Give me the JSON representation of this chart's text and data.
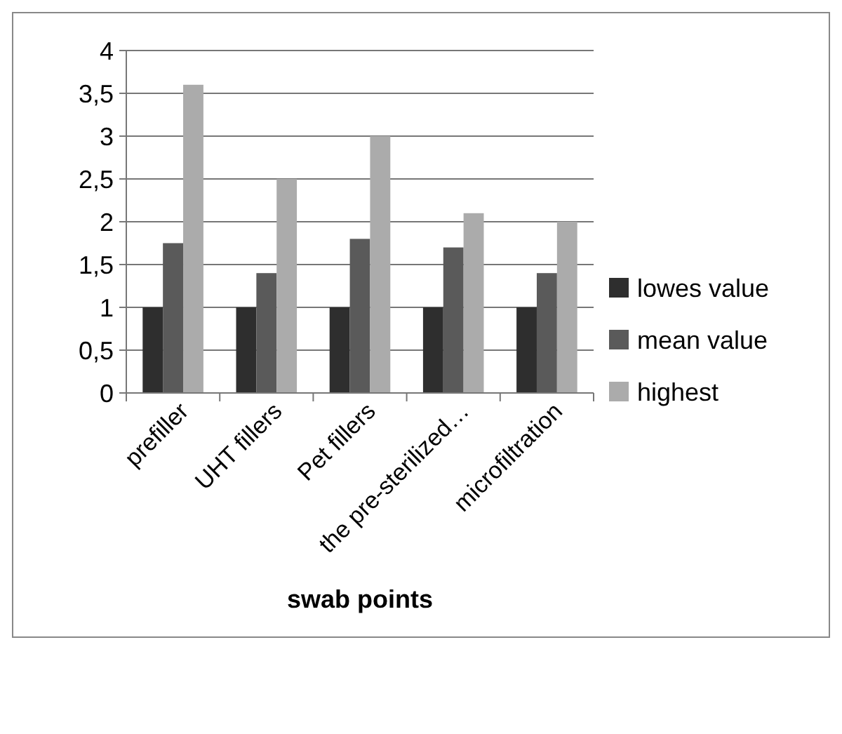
{
  "chart_data": {
    "type": "bar",
    "xlabel": "swab points",
    "categories": [
      "prefiller",
      "UHT fillers",
      "Pet fillers",
      "the pre-sterilized…",
      "microfiltration"
    ],
    "series": [
      {
        "name": "lowes value",
        "color": "#2e2e2e",
        "values": [
          1,
          1,
          1,
          1,
          1
        ]
      },
      {
        "name": "mean value",
        "color": "#5a5a5a",
        "values": [
          1.75,
          1.4,
          1.8,
          1.7,
          1.4
        ]
      },
      {
        "name": "highest",
        "color": "#ababab",
        "values": [
          3.6,
          2.5,
          3,
          2.1,
          2
        ]
      }
    ],
    "ylim": [
      0,
      4
    ],
    "yticks": [
      0,
      {
        "value": 0.5,
        "label": "0,5"
      },
      1,
      {
        "value": 1.5,
        "label": "1,5"
      },
      2,
      {
        "value": 2.5,
        "label": "2,5"
      },
      3,
      {
        "value": 3.5,
        "label": "3,5"
      },
      4
    ],
    "grid": "y",
    "legend": "right"
  }
}
